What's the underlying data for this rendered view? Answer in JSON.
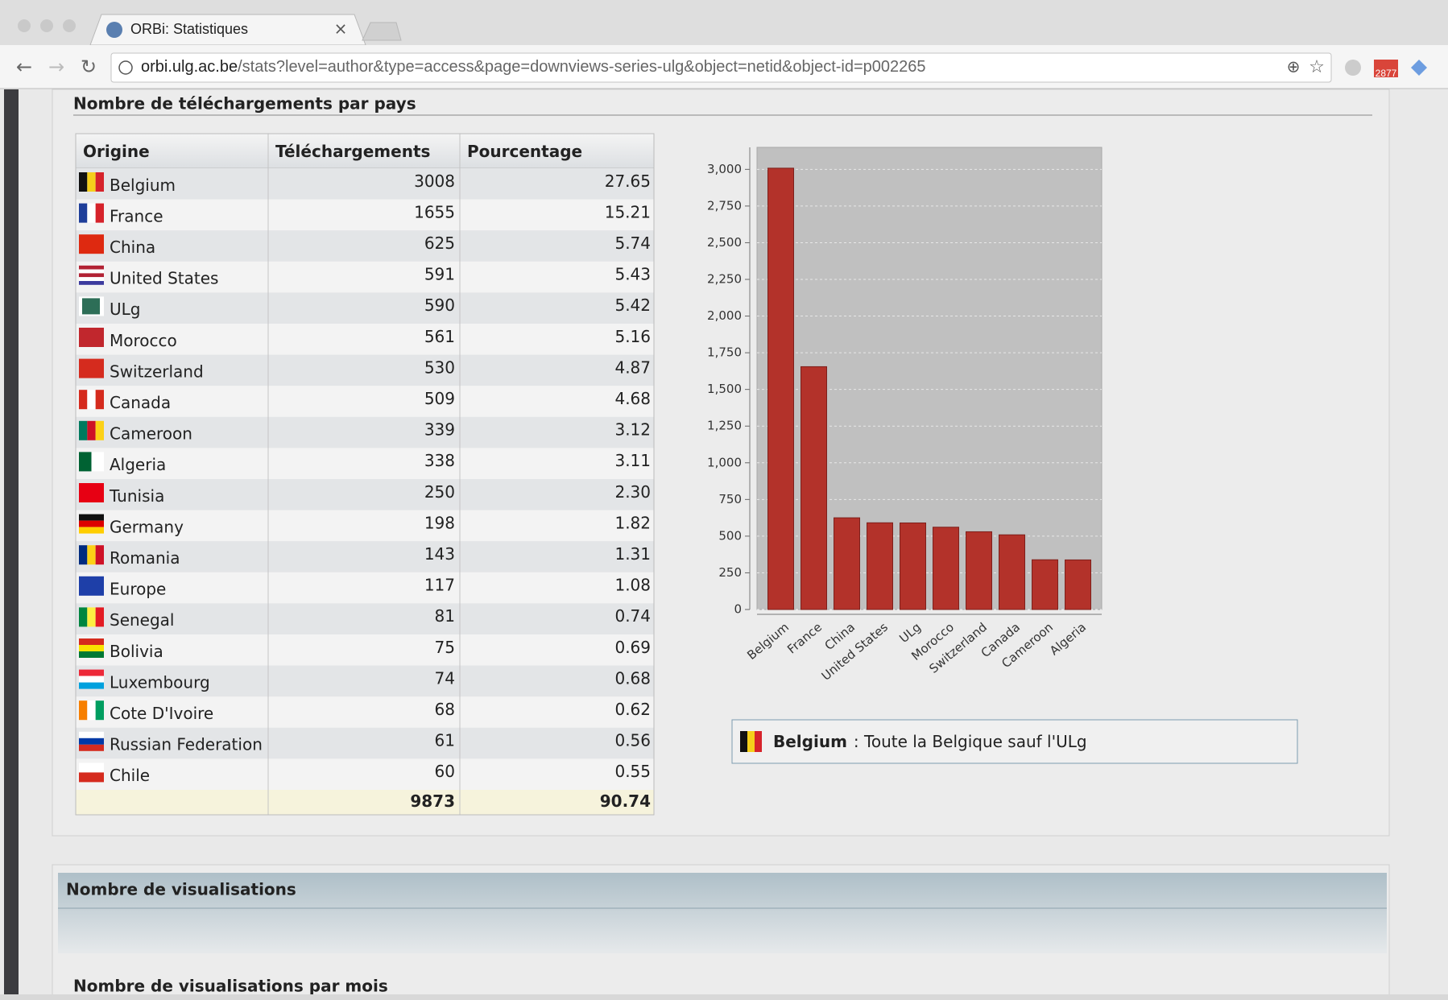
{
  "browser": {
    "tab_title": "ORBi: Statistiques",
    "url_host": "orbi.ulg.ac.be",
    "url_path": "/stats?level=author&type=access&page=downviews-series-ulg&object=netid&object-id=p002265",
    "badge": "2877"
  },
  "section": {
    "title": "Nombre de téléchargements par pays"
  },
  "table": {
    "headers": [
      "Origine",
      "Téléchargements",
      "Pourcentage"
    ],
    "rows": [
      [
        "Belgium",
        "3008",
        "27.65"
      ],
      [
        "France",
        "1655",
        "15.21"
      ],
      [
        "China",
        "625",
        "5.74"
      ],
      [
        "United States",
        "591",
        "5.43"
      ],
      [
        "ULg",
        "590",
        "5.42"
      ],
      [
        "Morocco",
        "561",
        "5.16"
      ],
      [
        "Switzerland",
        "530",
        "4.87"
      ],
      [
        "Canada",
        "509",
        "4.68"
      ],
      [
        "Cameroon",
        "339",
        "3.12"
      ],
      [
        "Algeria",
        "338",
        "3.11"
      ],
      [
        "Tunisia",
        "250",
        "2.30"
      ],
      [
        "Germany",
        "198",
        "1.82"
      ],
      [
        "Romania",
        "143",
        "1.31"
      ],
      [
        "Europe",
        "117",
        "1.08"
      ],
      [
        "Senegal",
        "81",
        "0.74"
      ],
      [
        "Bolivia",
        "75",
        "0.69"
      ],
      [
        "Luxembourg",
        "74",
        "0.68"
      ],
      [
        "Cote D'Ivoire",
        "68",
        "0.62"
      ],
      [
        "Russian Federation",
        "61",
        "0.56"
      ],
      [
        "Chile",
        "60",
        "0.55"
      ]
    ],
    "total": [
      "9873",
      "90.74"
    ]
  },
  "chart_data": {
    "type": "bar",
    "categories": [
      "Belgium",
      "France",
      "China",
      "United States",
      "ULg",
      "Morocco",
      "Switzerland",
      "Canada",
      "Cameroon",
      "Algeria"
    ],
    "values": [
      3008,
      1655,
      625,
      591,
      590,
      561,
      530,
      509,
      339,
      338
    ],
    "color": "#b3322a",
    "ylim": [
      0,
      3150
    ],
    "yticks": [
      0,
      250,
      500,
      750,
      {
        "value": 1000,
        "label": "1,000"
      },
      {
        "value": 1250,
        "label": "1,250"
      },
      {
        "value": 1500,
        "label": "1,500"
      },
      {
        "value": 1750,
        "label": "1,750"
      },
      {
        "value": 2000,
        "label": "2,000"
      },
      {
        "value": 2250,
        "label": "2,250"
      },
      {
        "value": 2500,
        "label": "2,500"
      },
      {
        "value": 2750,
        "label": "2,750"
      },
      {
        "value": 3000,
        "label": "3,000"
      }
    ],
    "grid": true
  },
  "note": {
    "country": "Belgium",
    "text": ": Toute la Belgique sauf l'ULg"
  },
  "section2": {
    "title": "Nombre de visualisations",
    "subtitle": "Nombre de visualisations par mois"
  }
}
